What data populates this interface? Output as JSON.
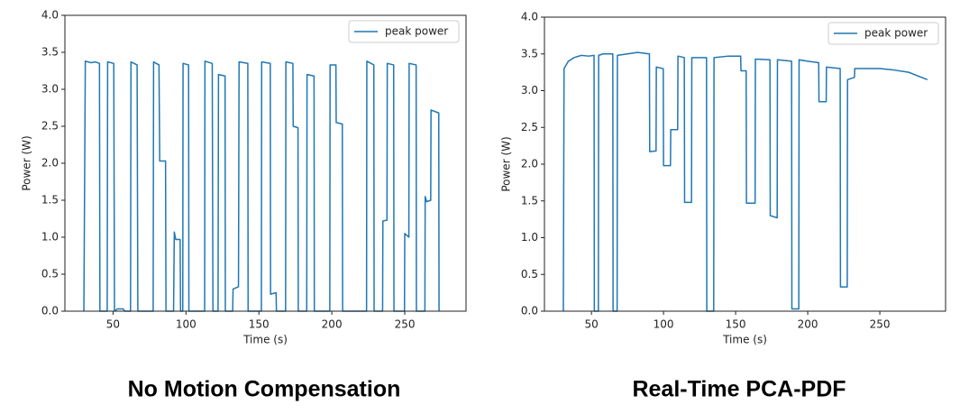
{
  "chart_data": [
    {
      "type": "line",
      "title": "No Motion Compensation",
      "xlabel": "Time (s)",
      "ylabel": "Power (W)",
      "legend": "upper right",
      "xlim": [
        17,
        292
      ],
      "ylim": [
        0,
        4
      ],
      "xticks": [
        50,
        100,
        150,
        200,
        250
      ],
      "yticks": [
        {
          "value": 0,
          "label": "0.0"
        },
        {
          "value": 0.5,
          "label": "0.5"
        },
        {
          "value": 1,
          "label": "1.0"
        },
        {
          "value": 1.5,
          "label": "1.5"
        },
        {
          "value": 2,
          "label": "2.0"
        },
        {
          "value": 2.5,
          "label": "2.5"
        },
        {
          "value": 3,
          "label": "3.0"
        },
        {
          "value": 3.5,
          "label": "3.5"
        },
        {
          "value": 4,
          "label": "4.0"
        }
      ],
      "x": [
        30,
        31,
        35,
        38,
        40.7,
        41,
        46,
        46.3,
        50.5,
        51,
        53,
        57,
        58,
        62,
        62.3,
        66.5,
        67,
        77.5,
        77.8,
        81.5,
        82,
        86,
        86.3,
        91.5,
        92,
        93,
        96,
        96.3,
        97.8,
        98,
        101.8,
        102,
        112.8,
        113,
        118,
        118.5,
        122,
        122.3,
        126.8,
        127,
        132,
        132.3,
        136,
        136.4,
        142.4,
        142.6,
        151.7,
        151.9,
        157.8,
        158,
        161.8,
        162,
        168.3,
        168.5,
        173.3,
        173.5,
        176.8,
        177,
        182.8,
        183,
        187.8,
        188,
        198.6,
        198.8,
        202.8,
        203,
        207.2,
        207.4,
        223.8,
        224,
        228.8,
        229,
        234.8,
        235,
        237.8,
        238,
        242.4,
        242.6,
        249.8,
        250,
        252.8,
        253,
        257.8,
        258,
        263.8,
        264,
        265,
        267.8,
        268,
        273.3,
        273.5
      ],
      "series": [
        {
          "name": "peak power",
          "color": "#1f77b4",
          "values": [
            0,
            3.38,
            3.36,
            3.37,
            3.35,
            0,
            0,
            3.37,
            3.35,
            0,
            0.03,
            0.03,
            0,
            0,
            3.37,
            3.33,
            0,
            0,
            3.37,
            3.33,
            2.03,
            2.03,
            0,
            0,
            1.07,
            0.97,
            0.97,
            0,
            0,
            3.35,
            3.33,
            0,
            0,
            3.38,
            3.35,
            0,
            0,
            3.2,
            3.18,
            0,
            0,
            0.3,
            0.33,
            3.37,
            3.35,
            0,
            0,
            3.37,
            3.35,
            0.23,
            0.25,
            0,
            0,
            3.37,
            3.35,
            2.5,
            2.48,
            0,
            0,
            3.2,
            3.18,
            0,
            0,
            3.33,
            3.33,
            2.55,
            2.53,
            0,
            0,
            3.38,
            3.33,
            0,
            0,
            1.22,
            1.23,
            3.35,
            3.33,
            0,
            0,
            1.05,
            1.0,
            3.35,
            3.33,
            0,
            0,
            1.55,
            1.48,
            1.5,
            2.72,
            2.68,
            0
          ]
        }
      ]
    },
    {
      "type": "line",
      "title": "Real-Time PCA-PDF",
      "xlabel": "Time (s)",
      "ylabel": "Power (W)",
      "legend": "upper right",
      "xlim": [
        17.4,
        295.6
      ],
      "ylim": [
        0,
        4
      ],
      "xticks": [
        50,
        100,
        150,
        200,
        250
      ],
      "yticks": [
        {
          "value": 0,
          "label": "0.0"
        },
        {
          "value": 0.5,
          "label": "0.5"
        },
        {
          "value": 1,
          "label": "1.0"
        },
        {
          "value": 1.5,
          "label": "1.5"
        },
        {
          "value": 2,
          "label": "2.0"
        },
        {
          "value": 2.5,
          "label": "2.5"
        },
        {
          "value": 3,
          "label": "3.0"
        },
        {
          "value": 3.5,
          "label": "3.5"
        },
        {
          "value": 4,
          "label": "4.0"
        }
      ],
      "x": [
        30.5,
        31,
        34,
        38,
        43,
        48,
        51.8,
        52,
        54.8,
        55,
        58,
        64.8,
        65,
        67.8,
        68,
        75,
        82,
        90.2,
        90.4,
        94.8,
        95,
        99.8,
        100,
        104.8,
        105,
        109.8,
        110,
        114.4,
        114.6,
        119.4,
        119.6,
        129.8,
        130,
        134.8,
        135,
        145,
        153.5,
        153.7,
        157.3,
        157.5,
        163.5,
        163.7,
        173.8,
        174,
        178.8,
        179,
        188.8,
        189,
        193.8,
        194,
        200,
        207.6,
        207.8,
        212.8,
        213,
        222.5,
        222.7,
        227.4,
        227.6,
        232.4,
        232.6,
        240,
        250,
        260,
        270,
        279,
        283
      ],
      "series": [
        {
          "name": "peak power",
          "color": "#1f77b4",
          "values": [
            0,
            3.3,
            3.4,
            3.45,
            3.48,
            3.47,
            3.48,
            0,
            0,
            3.48,
            3.5,
            3.5,
            0,
            0,
            3.48,
            3.5,
            3.52,
            3.5,
            2.17,
            2.18,
            3.32,
            3.3,
            1.98,
            1.98,
            2.47,
            2.47,
            3.47,
            3.45,
            1.48,
            1.48,
            3.45,
            3.45,
            0,
            0,
            3.45,
            3.47,
            3.47,
            3.27,
            3.27,
            1.47,
            1.47,
            3.43,
            3.42,
            1.3,
            1.27,
            3.42,
            3.4,
            0.03,
            0.03,
            3.42,
            3.4,
            3.38,
            2.85,
            2.85,
            3.32,
            3.3,
            0.33,
            0.33,
            3.15,
            3.18,
            3.3,
            3.3,
            3.3,
            3.28,
            3.25,
            3.18,
            3.15
          ]
        }
      ]
    }
  ]
}
